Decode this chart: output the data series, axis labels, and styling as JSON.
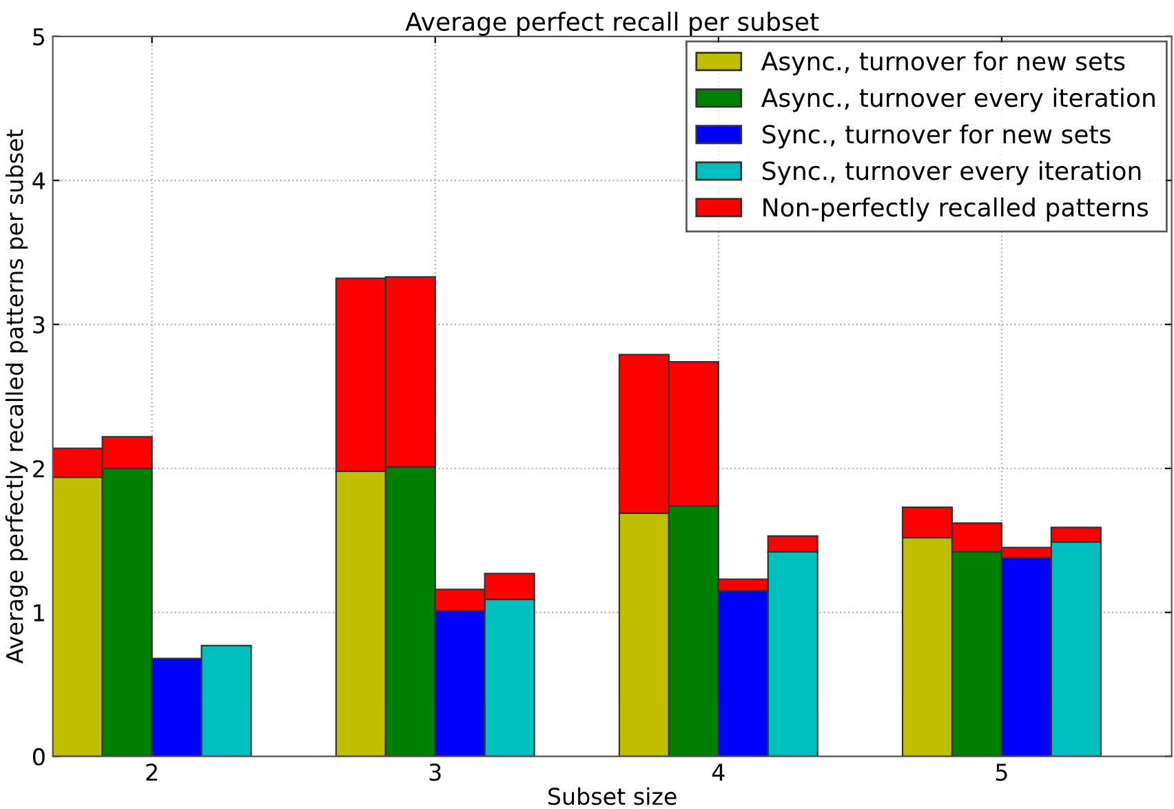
{
  "chart_data": {
    "type": "bar",
    "title": "Average perfect recall per subset",
    "xlabel": "Subset size",
    "ylabel": "Average perfectly recalled patterns per subset",
    "xlim": [
      1.65,
      5.6
    ],
    "xticks": [
      2,
      3,
      4,
      5
    ],
    "ylim": [
      0,
      5
    ],
    "yticks": [
      0,
      1,
      2,
      3,
      4,
      5
    ],
    "grid": true,
    "legend": "top right",
    "series": [
      {
        "name": "Async., turnover for new sets",
        "color": "#bfbf00",
        "x": [
          1.7375,
          2.7375,
          3.7375,
          4.7375
        ],
        "values": [
          1.94,
          1.98,
          1.69,
          1.52
        ]
      },
      {
        "name": "Async., turnover every iteration",
        "color": "#008000",
        "x": [
          1.9125,
          2.9125,
          3.9125,
          4.9125
        ],
        "values": [
          2.0,
          2.01,
          1.74,
          1.42
        ]
      },
      {
        "name": "Sync., turnover for new sets",
        "color": "#0000ff",
        "x": [
          2.0875,
          3.0875,
          4.0875,
          5.0875
        ],
        "values": [
          0.68,
          1.01,
          1.15,
          1.38
        ]
      },
      {
        "name": "Sync., turnover every iteration",
        "color": "#00bfbf",
        "x": [
          2.2625,
          3.2625,
          4.2625,
          5.2625
        ],
        "values": [
          0.77,
          1.09,
          1.42,
          1.49
        ]
      },
      {
        "name": "Non-perfectly recalled patterns",
        "color": "#ff0000",
        "x": [
          1.7375,
          1.9125,
          2.0875,
          2.2625,
          2.7375,
          2.9125,
          3.0875,
          3.2625,
          3.7375,
          3.9125,
          4.0875,
          4.2625,
          4.7375,
          4.9125,
          5.0875,
          5.2625
        ],
        "base": [
          1.94,
          2.0,
          null,
          null,
          1.98,
          2.01,
          1.01,
          1.09,
          1.69,
          1.74,
          1.15,
          1.42,
          1.52,
          1.42,
          1.38,
          1.49
        ],
        "values": [
          0.2,
          0.22,
          null,
          null,
          1.34,
          1.32,
          0.15,
          0.18,
          1.1,
          1.0,
          0.08,
          0.11,
          0.21,
          0.2,
          0.07,
          0.1
        ]
      }
    ]
  }
}
